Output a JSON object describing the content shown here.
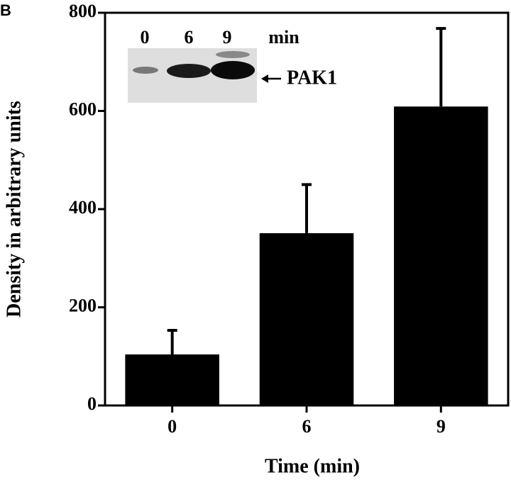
{
  "panel_label": "B",
  "chart_data": {
    "type": "bar",
    "categories": [
      "0",
      "6",
      "9"
    ],
    "values": [
      104,
      351,
      609
    ],
    "errors": [
      49,
      99,
      159
    ],
    "color": "#000000",
    "ylim": [
      0,
      800
    ],
    "yticks": [
      0,
      200,
      400,
      600,
      800
    ],
    "y_label": "Density in arbitrary units",
    "x_label": "Time (min)",
    "grid": false
  },
  "inset": {
    "lanes": [
      "0",
      "6",
      "9"
    ],
    "unit": "min",
    "band_label": "PAK1"
  }
}
